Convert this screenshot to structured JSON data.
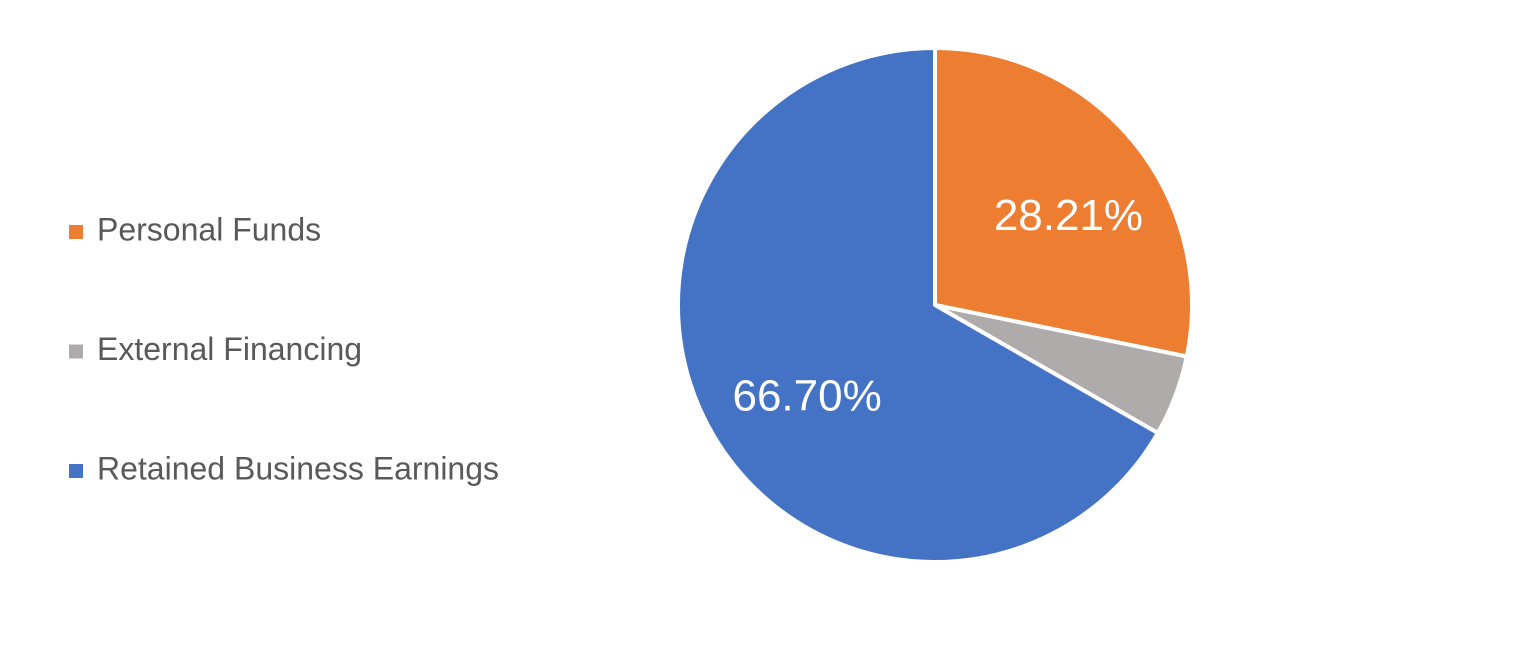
{
  "chart_data": {
    "type": "pie",
    "categories": [
      "Personal Funds",
      "External Financing",
      "Retained Business Earnings"
    ],
    "values": [
      28.21,
      5.09,
      66.7
    ],
    "value_labels": [
      "28.21%",
      null,
      "66.70%"
    ],
    "colors": [
      "#ed7d31",
      "#afabab",
      "#4472c4"
    ],
    "legend": "left"
  }
}
